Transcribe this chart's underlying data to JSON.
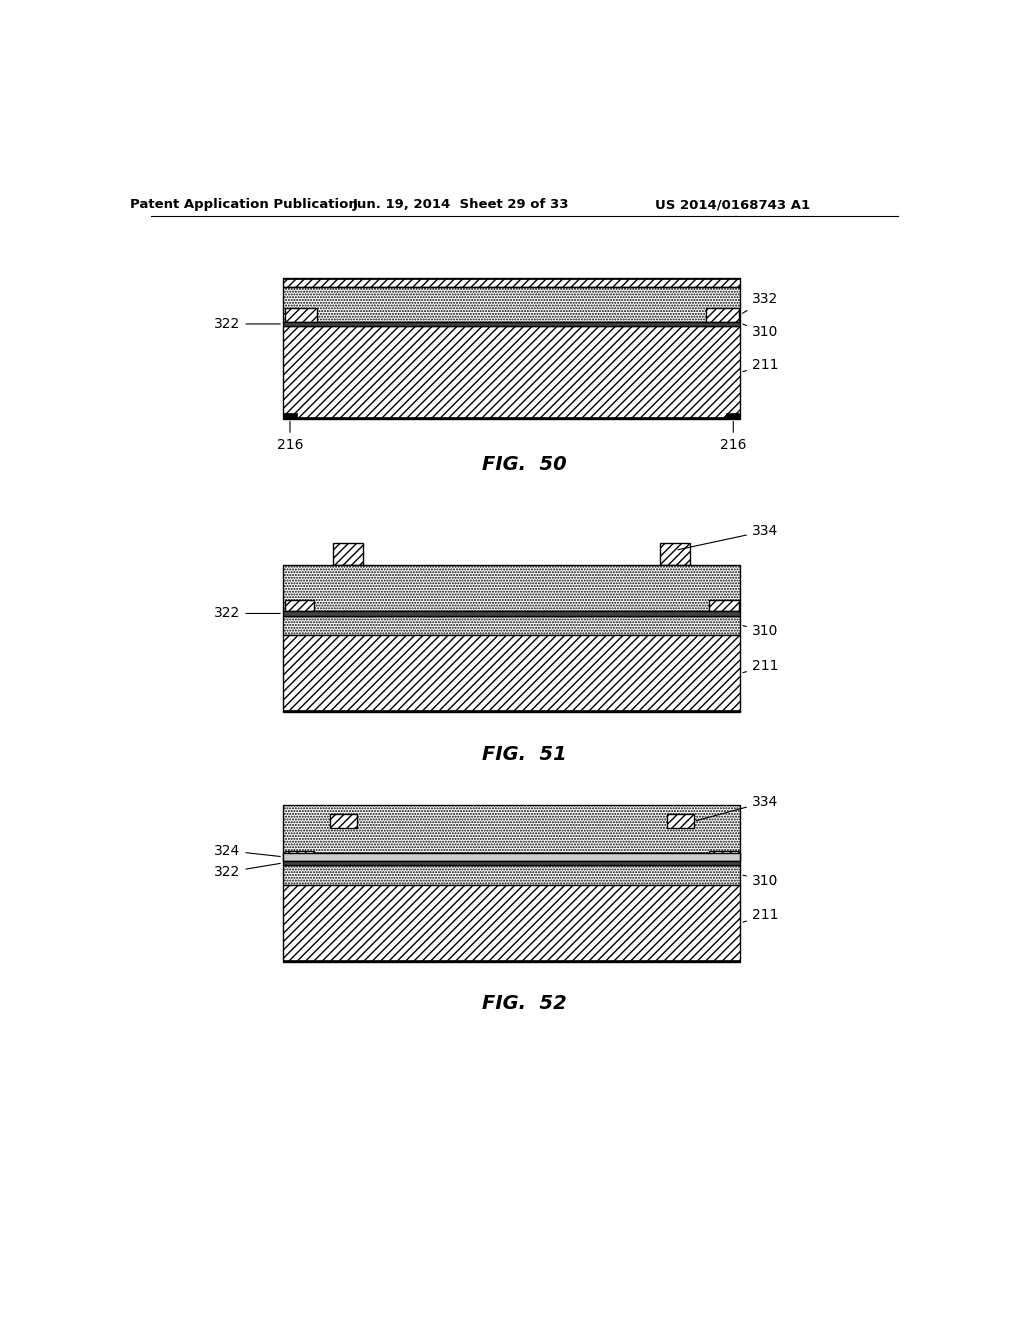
{
  "header_left": "Patent Application Publication",
  "header_mid": "Jun. 19, 2014  Sheet 29 of 33",
  "header_right": "US 2014/0168743 A1",
  "fig50_label": "FIG.  50",
  "fig51_label": "FIG.  51",
  "fig52_label": "FIG.  52",
  "background_color": "#ffffff"
}
